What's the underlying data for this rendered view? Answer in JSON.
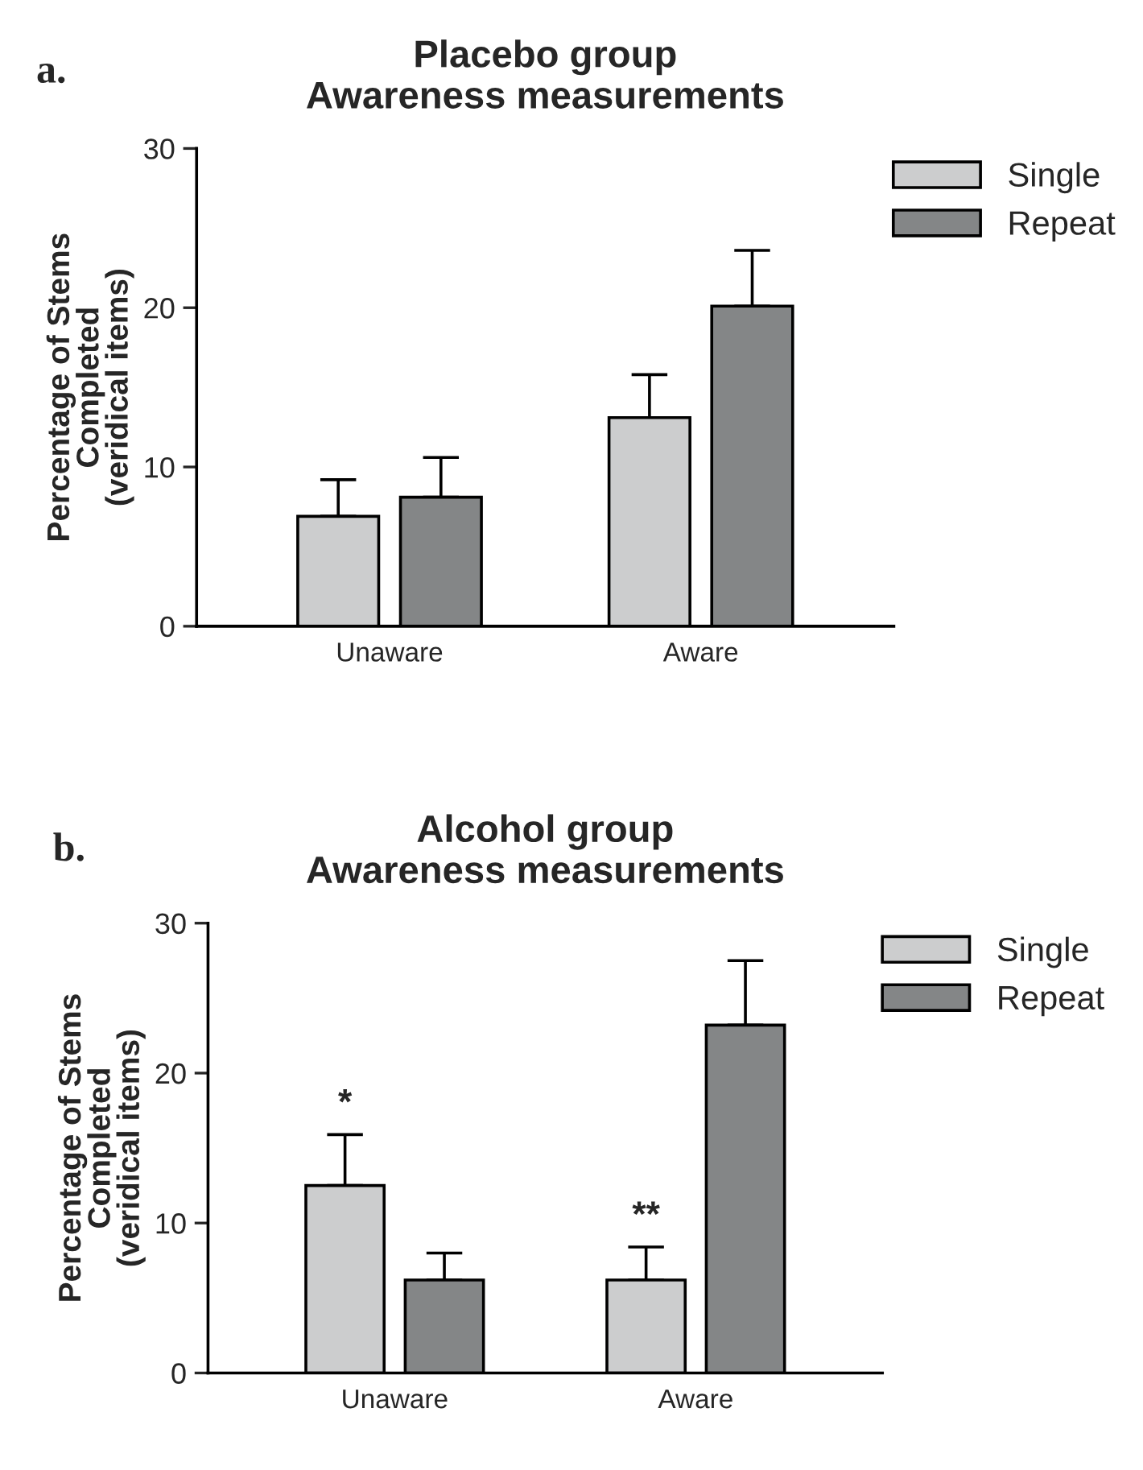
{
  "chart_data": [
    {
      "type": "bar",
      "title": "Placebo group\nAwareness measurements",
      "ylabel": "Percentage of Stems\nCompleted\n(veridical items)",
      "categories": [
        "Unaware",
        "Aware"
      ],
      "series": [
        {
          "name": "Single",
          "color": "#cccdce",
          "values": [
            6.9,
            13.1
          ],
          "errors": [
            2.3,
            2.7
          ]
        },
        {
          "name": "Repeat",
          "color": "#848687",
          "values": [
            8.1,
            20.1
          ],
          "errors": [
            2.5,
            3.5
          ]
        }
      ],
      "ylim": [
        0,
        30
      ],
      "yticks": [
        0,
        10,
        20,
        30
      ],
      "legend": "top right",
      "grid": false,
      "annotations": [
        "a."
      ]
    },
    {
      "type": "bar",
      "title": "Alcohol group\nAwareness measurements",
      "ylabel": "Percentage of Stems\nCompleted\n(veridical items)",
      "categories": [
        "Unaware",
        "Aware"
      ],
      "series": [
        {
          "name": "Single",
          "color": "#cccdce",
          "values": [
            12.5,
            6.2
          ],
          "errors": [
            3.4,
            2.2
          ],
          "value_labels": [
            "*",
            "**"
          ]
        },
        {
          "name": "Repeat",
          "color": "#848687",
          "values": [
            6.2,
            23.2
          ],
          "errors": [
            1.8,
            4.3
          ]
        }
      ],
      "ylim": [
        0,
        30
      ],
      "yticks": [
        0,
        10,
        20,
        30
      ],
      "legend": "top right",
      "grid": false,
      "annotations": [
        "b."
      ]
    }
  ]
}
